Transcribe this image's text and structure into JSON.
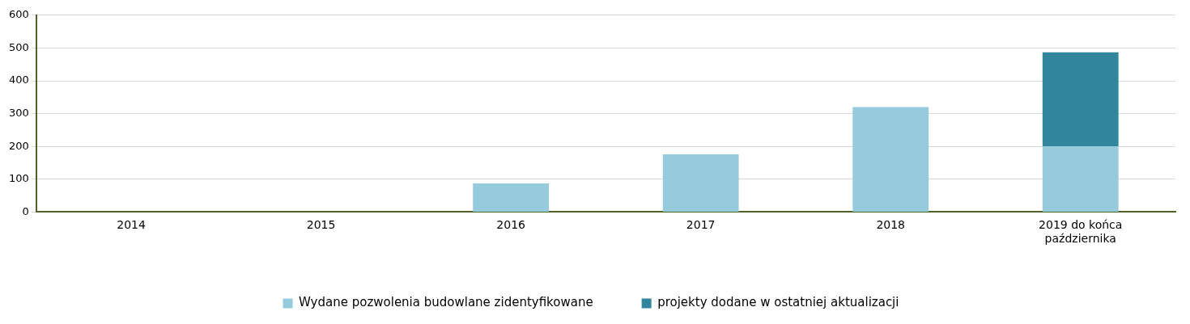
{
  "chart_data": {
    "type": "bar",
    "stacked": true,
    "categories": [
      "2014",
      "2015",
      "2016",
      "2017",
      "2018",
      "2019 do końca października"
    ],
    "series": [
      {
        "name": "Wydane pozwolenia budowlane zidentyfikowane",
        "color": "#95cbdc",
        "values": [
          0,
          0,
          87,
          176,
          320,
          200
        ]
      },
      {
        "name": "projekty dodane w ostatniej aktualizacji",
        "color": "#31859c",
        "values": [
          null,
          null,
          null,
          null,
          null,
          287
        ]
      }
    ],
    "ylim": [
      0,
      600
    ],
    "yticks": [
      0,
      100,
      200,
      300,
      400,
      500,
      600
    ],
    "grid": "y",
    "legend": "bottom"
  }
}
